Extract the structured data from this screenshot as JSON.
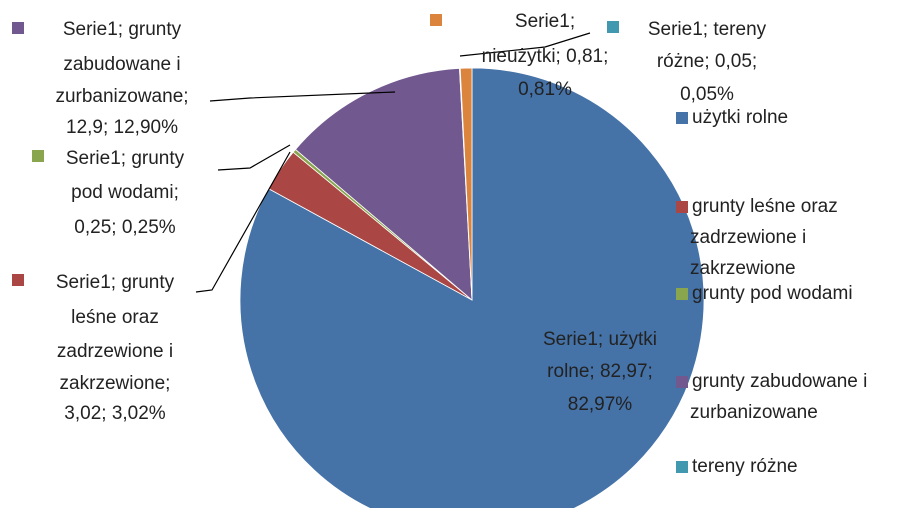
{
  "chart_data": {
    "type": "pie",
    "series_name": "Serie1",
    "categories": [
      "użytki rolne",
      "grunty leśne oraz zadrzewione i zakrzewione",
      "grunty pod wodami",
      "grunty zabudowane i zurbanizowane",
      "tereny różne",
      "nieużytki"
    ],
    "values": [
      82.97,
      3.02,
      0.25,
      12.9,
      0.05,
      0.81
    ],
    "value_labels": [
      "82,97",
      "3,02",
      "0,25",
      "12,9",
      "0,05",
      "0,81"
    ],
    "percent_labels": [
      "82,97%",
      "3,02%",
      "0,25%",
      "12,90%",
      "0,05%",
      "0,81%"
    ],
    "data_labels": [
      [
        "Serie1; użytki",
        "rolne; 82,97;",
        "82,97%"
      ],
      [
        "Serie1; grunty",
        "leśne oraz",
        "zadrzewione i",
        "zakrzewione;",
        "3,02; 3,02%"
      ],
      [
        "Serie1; grunty",
        "pod wodami;",
        "0,25; 0,25%"
      ],
      [
        "Serie1; grunty",
        "zabudowane i",
        "zurbanizowane;",
        "12,9; 12,90%"
      ],
      [
        "Serie1; tereny",
        "różne; 0,05;",
        "0,05%"
      ],
      [
        "Serie1;",
        "nieużytki; 0,81;",
        "0,81%"
      ]
    ],
    "colors": [
      "#4572a7",
      "#aa4643",
      "#89a54e",
      "#71588f",
      "#4198af",
      "#db843d"
    ],
    "legend": "right"
  }
}
